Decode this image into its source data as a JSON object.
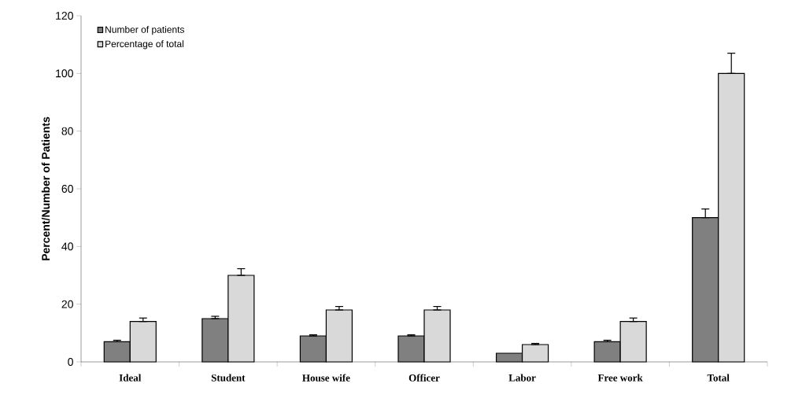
{
  "chart_data": {
    "type": "bar",
    "ylabel": "Percent/Number of Patients",
    "categories": [
      "Ideal",
      "Student",
      "House wife",
      "Officer",
      "Labor",
      "Free work",
      "Total"
    ],
    "series": [
      {
        "name": "Number of patients",
        "color": "#808080",
        "values": [
          7,
          15,
          9,
          9,
          3,
          7,
          50
        ],
        "errors": [
          [
            7,
            7.5
          ],
          [
            15,
            15.8
          ],
          [
            9,
            9.4
          ],
          [
            9,
            9.4
          ],
          null,
          [
            7,
            7.5
          ],
          [
            50,
            53
          ]
        ]
      },
      {
        "name": "Percentage of total",
        "color": "#d9d9d9",
        "values": [
          14,
          30,
          18,
          18,
          6,
          14,
          100
        ],
        "errors": [
          [
            14,
            15.2
          ],
          [
            30,
            32.3
          ],
          [
            18,
            19.2
          ],
          [
            18,
            19.2
          ],
          [
            6,
            6.4
          ],
          [
            14,
            15.2
          ],
          [
            100,
            107
          ]
        ]
      }
    ],
    "ylim": [
      0,
      120
    ],
    "yticks": [
      0,
      20,
      40,
      60,
      80,
      100,
      120
    ],
    "grid": false,
    "legend": "top left"
  }
}
